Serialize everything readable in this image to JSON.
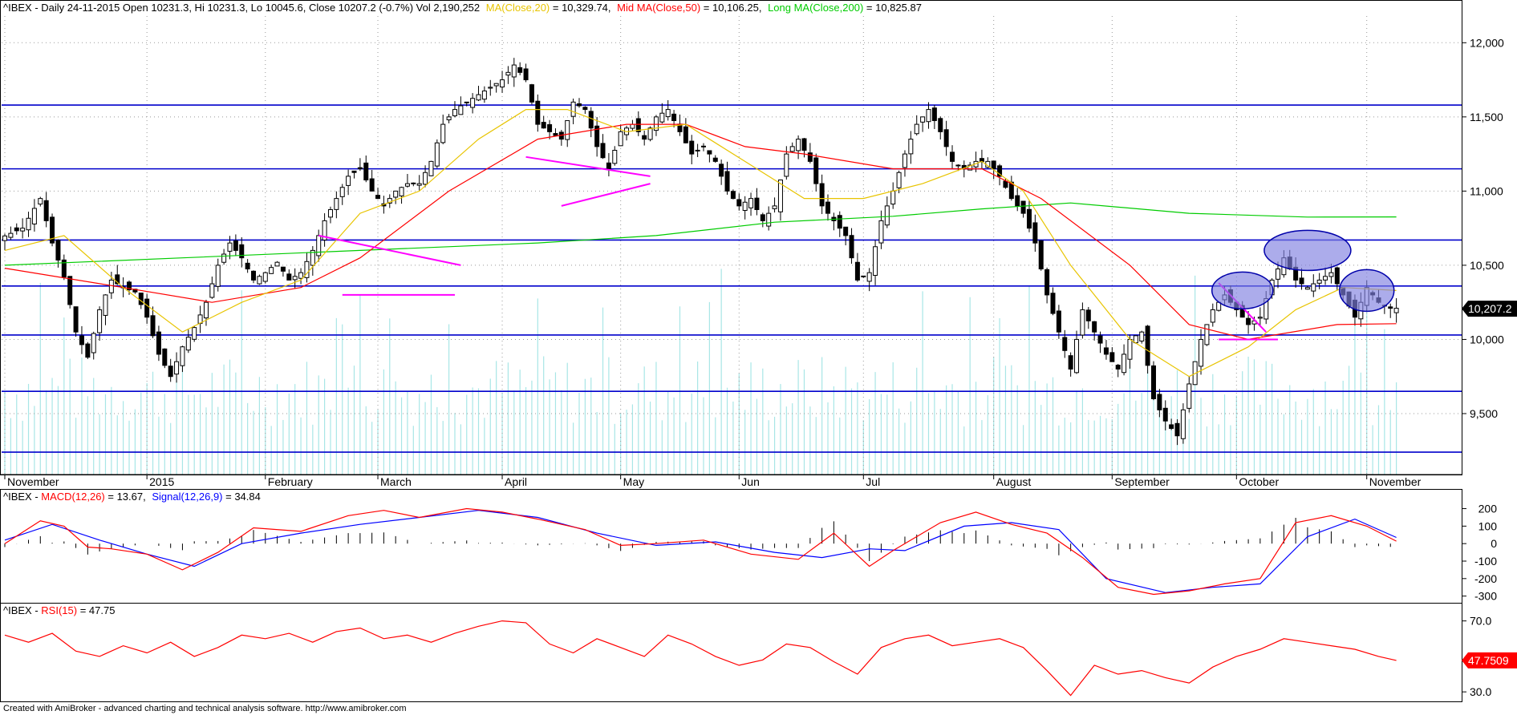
{
  "header": {
    "main_prefix": "^IBEX - Daily 24-11-2015 Open 10231.3, Hi 10231.3, Lo 10045.6, Close 10207.2 (-0.7%) Vol 2,190,252",
    "ma20_label": "MA(Close,20)",
    "ma20_value": " = 10,329.74,",
    "ma50_label": "Mid MA(Close,50)",
    "ma50_value": " = 10,106.25,",
    "ma200_label": "Long MA(Close,200)",
    "ma200_value": " = 10,825.87"
  },
  "macd_header": {
    "prefix": "^IBEX - ",
    "macd_label": "MACD(12,26)",
    "macd_value": " = 13.67,",
    "signal_label": "Signal(12,26,9)",
    "signal_value": " = 34.84"
  },
  "rsi_header": {
    "prefix": "^IBEX - ",
    "rsi_label": "RSI(15)",
    "rsi_value": " = 47.75"
  },
  "price_badge": "10,207.2",
  "rsi_badge": "47.7509",
  "footer": "Created with AmiBroker - advanced charting and technical analysis software. http://www.amibroker.com",
  "colors": {
    "ma20": "#e8c400",
    "ma50": "#ff0000",
    "ma200": "#00cc00",
    "macd": "#ff0000",
    "signal": "#0000ff",
    "rsi": "#ff0000",
    "hlines": "#0000cc",
    "volume": "#a8e6e6",
    "trendlines": "#ff00ff",
    "ellipses": "#8080e0"
  },
  "chart_data": [
    {
      "type": "candlestick",
      "y_ticks": [
        9500,
        10000,
        10500,
        11000,
        11500,
        12000
      ],
      "y_tick_labels": [
        "9,500",
        "10,000",
        "10,500",
        "11,000",
        "11,500",
        "12,000"
      ],
      "ylim": [
        9100,
        12180
      ],
      "month_labels": [
        {
          "label": "November",
          "day": 0
        },
        {
          "label": "2015",
          "day": 24
        },
        {
          "label": "February",
          "day": 44
        },
        {
          "label": "March",
          "day": 63
        },
        {
          "label": "April",
          "day": 84
        },
        {
          "label": "May",
          "day": 104
        },
        {
          "label": "Jun",
          "day": 124
        },
        {
          "label": "Jul",
          "day": 145
        },
        {
          "label": "August",
          "day": 167
        },
        {
          "label": "September",
          "day": 187
        },
        {
          "label": "October",
          "day": 208
        },
        {
          "label": "November",
          "day": 230
        }
      ],
      "horizontal_levels": [
        11580,
        11150,
        10670,
        10360,
        10030,
        9650,
        9240
      ],
      "close_path": [
        [
          0,
          10680
        ],
        [
          4,
          10750
        ],
        [
          7,
          10950
        ],
        [
          9,
          10650
        ],
        [
          11,
          10420
        ],
        [
          13,
          10050
        ],
        [
          15,
          9880
        ],
        [
          17,
          10200
        ],
        [
          19,
          10400
        ],
        [
          21,
          10350
        ],
        [
          23,
          10320
        ],
        [
          25,
          10150
        ],
        [
          27,
          9900
        ],
        [
          29,
          9750
        ],
        [
          31,
          9950
        ],
        [
          33,
          10080
        ],
        [
          35,
          10250
        ],
        [
          37,
          10500
        ],
        [
          39,
          10650
        ],
        [
          41,
          10550
        ],
        [
          43,
          10400
        ],
        [
          45,
          10450
        ],
        [
          47,
          10520
        ],
        [
          49,
          10400
        ],
        [
          51,
          10450
        ],
        [
          53,
          10600
        ],
        [
          55,
          10800
        ],
        [
          57,
          10950
        ],
        [
          59,
          11100
        ],
        [
          61,
          11150
        ],
        [
          63,
          11000
        ],
        [
          65,
          10900
        ],
        [
          67,
          11000
        ],
        [
          69,
          11050
        ],
        [
          71,
          11050
        ],
        [
          73,
          11200
        ],
        [
          75,
          11450
        ],
        [
          77,
          11550
        ],
        [
          79,
          11600
        ],
        [
          81,
          11650
        ],
        [
          83,
          11700
        ],
        [
          85,
          11750
        ],
        [
          87,
          11850
        ],
        [
          89,
          11750
        ],
        [
          91,
          11450
        ],
        [
          93,
          11400
        ],
        [
          95,
          11350
        ],
        [
          97,
          11600
        ],
        [
          99,
          11550
        ],
        [
          101,
          11300
        ],
        [
          103,
          11150
        ],
        [
          105,
          11400
        ],
        [
          107,
          11450
        ],
        [
          109,
          11350
        ],
        [
          111,
          11500
        ],
        [
          113,
          11550
        ],
        [
          115,
          11400
        ],
        [
          117,
          11250
        ],
        [
          119,
          11300
        ],
        [
          121,
          11200
        ],
        [
          123,
          11000
        ],
        [
          125,
          10900
        ],
        [
          127,
          10950
        ],
        [
          129,
          10800
        ],
        [
          131,
          10900
        ],
        [
          133,
          11250
        ],
        [
          135,
          11350
        ],
        [
          137,
          11200
        ],
        [
          139,
          10900
        ],
        [
          141,
          10800
        ],
        [
          143,
          10700
        ],
        [
          145,
          10400
        ],
        [
          147,
          10450
        ],
        [
          149,
          10800
        ],
        [
          151,
          11000
        ],
        [
          153,
          11250
        ],
        [
          155,
          11450
        ],
        [
          157,
          11550
        ],
        [
          159,
          11400
        ],
        [
          161,
          11200
        ],
        [
          163,
          11150
        ],
        [
          165,
          11200
        ],
        [
          167,
          11200
        ],
        [
          169,
          11100
        ],
        [
          171,
          10950
        ],
        [
          173,
          10850
        ],
        [
          175,
          10650
        ],
        [
          177,
          10300
        ],
        [
          179,
          10050
        ],
        [
          181,
          9800
        ],
        [
          183,
          10200
        ],
        [
          185,
          10050
        ],
        [
          187,
          9900
        ],
        [
          189,
          9800
        ],
        [
          191,
          10000
        ],
        [
          193,
          10050
        ],
        [
          195,
          9600
        ],
        [
          197,
          9450
        ],
        [
          199,
          9350
        ],
        [
          201,
          9700
        ],
        [
          203,
          10000
        ],
        [
          205,
          10200
        ],
        [
          207,
          10300
        ],
        [
          209,
          10200
        ],
        [
          211,
          10100
        ],
        [
          213,
          10150
        ],
        [
          215,
          10400
        ],
        [
          217,
          10550
        ],
        [
          219,
          10400
        ],
        [
          221,
          10350
        ],
        [
          223,
          10400
        ],
        [
          225,
          10450
        ],
        [
          227,
          10300
        ],
        [
          229,
          10150
        ],
        [
          231,
          10350
        ],
        [
          233,
          10250
        ],
        [
          235,
          10210
        ]
      ],
      "ma20_path": [
        [
          0,
          10600
        ],
        [
          10,
          10700
        ],
        [
          20,
          10350
        ],
        [
          30,
          10050
        ],
        [
          40,
          10250
        ],
        [
          50,
          10400
        ],
        [
          60,
          10850
        ],
        [
          70,
          11000
        ],
        [
          80,
          11350
        ],
        [
          88,
          11550
        ],
        [
          95,
          11550
        ],
        [
          105,
          11400
        ],
        [
          115,
          11450
        ],
        [
          125,
          11200
        ],
        [
          135,
          10950
        ],
        [
          145,
          10950
        ],
        [
          155,
          11050
        ],
        [
          165,
          11200
        ],
        [
          172,
          11000
        ],
        [
          180,
          10500
        ],
        [
          190,
          10000
        ],
        [
          200,
          9750
        ],
        [
          210,
          9950
        ],
        [
          218,
          10200
        ],
        [
          226,
          10350
        ],
        [
          235,
          10330
        ]
      ],
      "ma50_path": [
        [
          0,
          10480
        ],
        [
          20,
          10350
        ],
        [
          35,
          10250
        ],
        [
          50,
          10350
        ],
        [
          60,
          10550
        ],
        [
          75,
          11000
        ],
        [
          90,
          11350
        ],
        [
          105,
          11450
        ],
        [
          115,
          11450
        ],
        [
          125,
          11300
        ],
        [
          135,
          11250
        ],
        [
          150,
          11150
        ],
        [
          165,
          11150
        ],
        [
          175,
          10950
        ],
        [
          190,
          10500
        ],
        [
          200,
          10100
        ],
        [
          210,
          10000
        ],
        [
          225,
          10100
        ],
        [
          235,
          10106
        ]
      ],
      "ma200_path": [
        [
          0,
          10500
        ],
        [
          30,
          10550
        ],
        [
          60,
          10600
        ],
        [
          90,
          10650
        ],
        [
          110,
          10700
        ],
        [
          130,
          10790
        ],
        [
          150,
          10830
        ],
        [
          165,
          10880
        ],
        [
          180,
          10920
        ],
        [
          200,
          10850
        ],
        [
          220,
          10825
        ],
        [
          235,
          10826
        ]
      ]
    },
    {
      "type": "line",
      "name": "MACD",
      "y_ticks": [
        200,
        100,
        0,
        -100,
        -200,
        -300
      ],
      "ylim": [
        -320,
        230
      ],
      "macd_path": [
        [
          0,
          0
        ],
        [
          6,
          130
        ],
        [
          10,
          100
        ],
        [
          14,
          -20
        ],
        [
          18,
          -30
        ],
        [
          24,
          -60
        ],
        [
          30,
          -150
        ],
        [
          36,
          -50
        ],
        [
          42,
          90
        ],
        [
          50,
          70
        ],
        [
          58,
          160
        ],
        [
          64,
          190
        ],
        [
          70,
          150
        ],
        [
          78,
          200
        ],
        [
          84,
          180
        ],
        [
          90,
          140
        ],
        [
          98,
          80
        ],
        [
          104,
          -10
        ],
        [
          110,
          0
        ],
        [
          118,
          20
        ],
        [
          126,
          -60
        ],
        [
          134,
          -90
        ],
        [
          140,
          60
        ],
        [
          146,
          -130
        ],
        [
          150,
          -40
        ],
        [
          158,
          120
        ],
        [
          164,
          180
        ],
        [
          170,
          110
        ],
        [
          176,
          60
        ],
        [
          182,
          -80
        ],
        [
          188,
          -250
        ],
        [
          194,
          -290
        ],
        [
          200,
          -270
        ],
        [
          206,
          -230
        ],
        [
          212,
          -200
        ],
        [
          218,
          120
        ],
        [
          224,
          160
        ],
        [
          230,
          100
        ],
        [
          235,
          14
        ]
      ],
      "signal_path": [
        [
          0,
          20
        ],
        [
          8,
          110
        ],
        [
          16,
          20
        ],
        [
          24,
          -60
        ],
        [
          32,
          -130
        ],
        [
          40,
          0
        ],
        [
          50,
          60
        ],
        [
          60,
          110
        ],
        [
          70,
          150
        ],
        [
          80,
          190
        ],
        [
          90,
          150
        ],
        [
          100,
          60
        ],
        [
          110,
          -10
        ],
        [
          120,
          10
        ],
        [
          130,
          -50
        ],
        [
          138,
          -80
        ],
        [
          146,
          -30
        ],
        [
          152,
          -40
        ],
        [
          162,
          100
        ],
        [
          170,
          120
        ],
        [
          178,
          80
        ],
        [
          186,
          -200
        ],
        [
          196,
          -280
        ],
        [
          204,
          -250
        ],
        [
          212,
          -230
        ],
        [
          220,
          40
        ],
        [
          228,
          140
        ],
        [
          235,
          35
        ]
      ]
    },
    {
      "type": "line",
      "name": "RSI",
      "y_ticks": [
        70.0,
        30.0
      ],
      "y_tick_labels": [
        "70.0",
        "30.0"
      ],
      "ylim": [
        26,
        73
      ],
      "rsi_path": [
        [
          0,
          62
        ],
        [
          4,
          58
        ],
        [
          8,
          63
        ],
        [
          12,
          53
        ],
        [
          16,
          50
        ],
        [
          20,
          56
        ],
        [
          24,
          52
        ],
        [
          28,
          58
        ],
        [
          32,
          50
        ],
        [
          36,
          55
        ],
        [
          40,
          62
        ],
        [
          44,
          60
        ],
        [
          48,
          63
        ],
        [
          52,
          58
        ],
        [
          56,
          64
        ],
        [
          60,
          66
        ],
        [
          64,
          60
        ],
        [
          68,
          62
        ],
        [
          72,
          58
        ],
        [
          76,
          63
        ],
        [
          80,
          67
        ],
        [
          84,
          70
        ],
        [
          88,
          69
        ],
        [
          92,
          57
        ],
        [
          96,
          52
        ],
        [
          100,
          60
        ],
        [
          104,
          55
        ],
        [
          108,
          50
        ],
        [
          112,
          62
        ],
        [
          116,
          57
        ],
        [
          120,
          50
        ],
        [
          124,
          45
        ],
        [
          128,
          48
        ],
        [
          132,
          57
        ],
        [
          136,
          55
        ],
        [
          140,
          47
        ],
        [
          144,
          40
        ],
        [
          148,
          55
        ],
        [
          152,
          60
        ],
        [
          156,
          62
        ],
        [
          160,
          56
        ],
        [
          164,
          58
        ],
        [
          168,
          60
        ],
        [
          172,
          55
        ],
        [
          176,
          42
        ],
        [
          180,
          28
        ],
        [
          184,
          45
        ],
        [
          188,
          40
        ],
        [
          192,
          42
        ],
        [
          196,
          38
        ],
        [
          200,
          35
        ],
        [
          204,
          44
        ],
        [
          208,
          50
        ],
        [
          212,
          54
        ],
        [
          216,
          60
        ],
        [
          220,
          58
        ],
        [
          224,
          56
        ],
        [
          228,
          54
        ],
        [
          232,
          50
        ],
        [
          235,
          47.75
        ]
      ]
    }
  ]
}
